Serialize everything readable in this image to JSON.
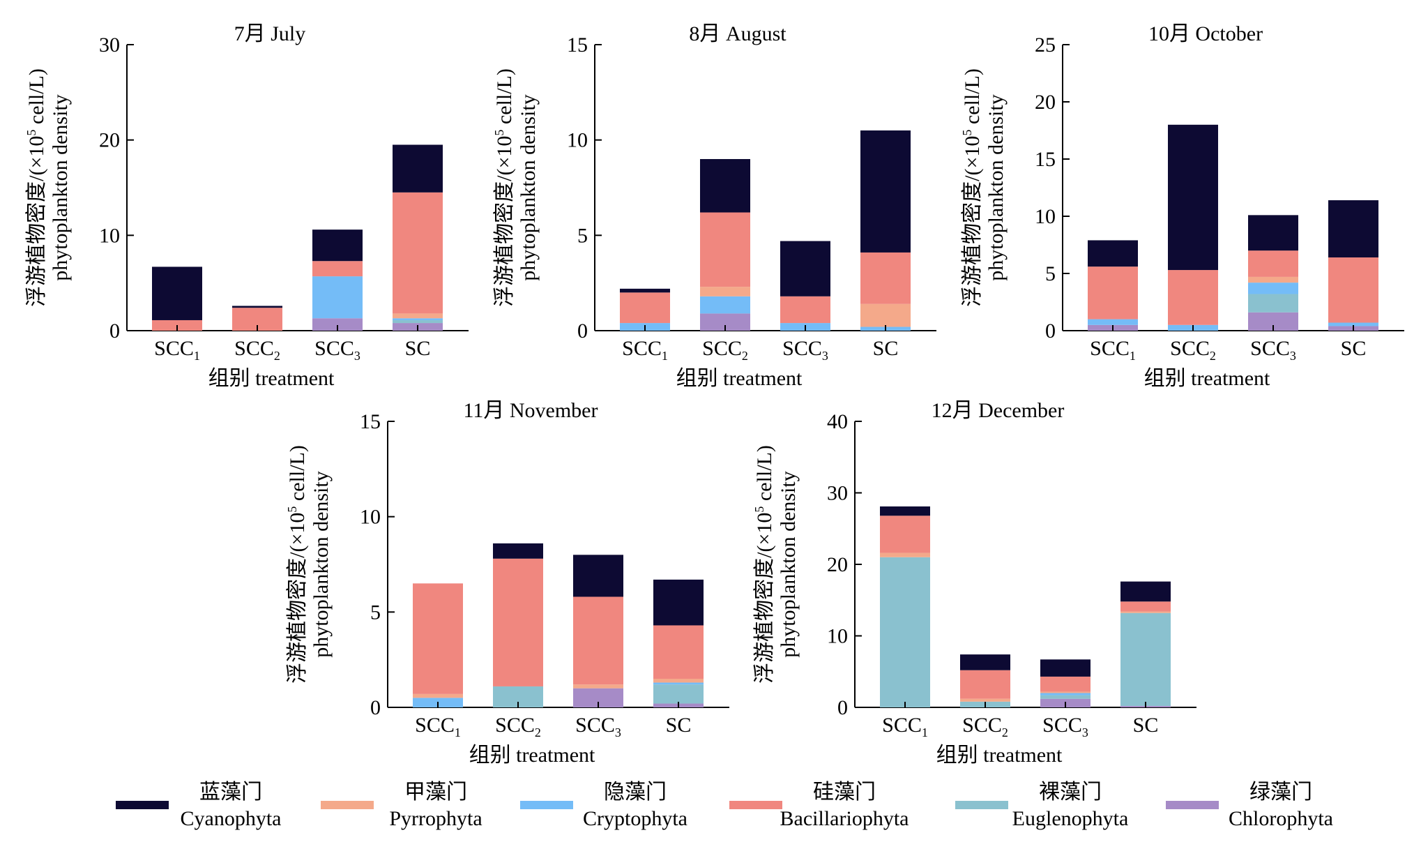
{
  "ylabel_cn": "浮游植物密度/(×10",
  "ylabel_sup": "5",
  "ylabel_unit": " cell/L)",
  "ylabel_en": "phytoplankton density",
  "xlabel": "组别 treatment",
  "legend": [
    {
      "key": "cyano",
      "cn": "蓝藻门",
      "en": "Cyanophyta",
      "color": "#0d0a33"
    },
    {
      "key": "pyrro",
      "cn": "甲藻门",
      "en": "Pyrrophyta",
      "color": "#f4a98a"
    },
    {
      "key": "crypto",
      "cn": "隐藻门",
      "en": "Cryptophyta",
      "color": "#74bcf7"
    },
    {
      "key": "bac",
      "cn": "硅藻门",
      "en": "Bacillariophyta",
      "color": "#f0877f"
    },
    {
      "key": "eug",
      "cn": "裸藻门",
      "en": "Euglenophyta",
      "color": "#8ac1cf"
    },
    {
      "key": "chloro",
      "cn": "绿藻门",
      "en": "Chlorophyta",
      "color": "#a68bc7"
    }
  ],
  "chart_data": [
    {
      "type": "bar",
      "stacked": true,
      "title": "7月 July",
      "categories": [
        {
          "base": "SCC",
          "sub": "1"
        },
        {
          "base": "SCC",
          "sub": "2"
        },
        {
          "base": "SCC",
          "sub": "3"
        },
        {
          "base": "SC",
          "sub": ""
        }
      ],
      "ylim": [
        0,
        30
      ],
      "yticks": [
        0,
        10,
        20,
        30
      ],
      "series": [
        {
          "name": "绿藻门 Chlorophyta",
          "key": "chloro",
          "values": [
            0,
            0,
            1.3,
            0.8
          ]
        },
        {
          "name": "裸藻门 Euglenophyta",
          "key": "eug",
          "values": [
            0,
            0,
            0,
            0.3
          ]
        },
        {
          "name": "隐藻门 Cryptophyta",
          "key": "crypto",
          "values": [
            0,
            0,
            4.4,
            0.2
          ]
        },
        {
          "name": "甲藻门 Pyrrophyta",
          "key": "pyrro",
          "values": [
            0,
            0,
            0,
            0.5
          ]
        },
        {
          "name": "硅藻门 Bacillariophyta",
          "key": "bac",
          "values": [
            1.1,
            2.4,
            1.6,
            12.7
          ]
        },
        {
          "name": "蓝藻门 Cyanophyta",
          "key": "cyano",
          "values": [
            5.6,
            0.2,
            3.3,
            5.0
          ]
        }
      ]
    },
    {
      "type": "bar",
      "stacked": true,
      "title": "8月 August",
      "categories": [
        {
          "base": "SCC",
          "sub": "1"
        },
        {
          "base": "SCC",
          "sub": "2"
        },
        {
          "base": "SCC",
          "sub": "3"
        },
        {
          "base": "SC",
          "sub": ""
        }
      ],
      "ylim": [
        0,
        15
      ],
      "yticks": [
        0,
        5,
        10,
        15
      ],
      "series": [
        {
          "name": "绿藻门 Chlorophyta",
          "key": "chloro",
          "values": [
            0,
            0.9,
            0,
            0
          ]
        },
        {
          "name": "裸藻门 Euglenophyta",
          "key": "eug",
          "values": [
            0,
            0,
            0,
            0
          ]
        },
        {
          "name": "隐藻门 Cryptophyta",
          "key": "crypto",
          "values": [
            0.4,
            0.9,
            0.4,
            0.2
          ]
        },
        {
          "name": "甲藻门 Pyrrophyta",
          "key": "pyrro",
          "values": [
            0,
            0.5,
            0,
            1.2
          ]
        },
        {
          "name": "硅藻门 Bacillariophyta",
          "key": "bac",
          "values": [
            1.6,
            3.9,
            1.4,
            2.7
          ]
        },
        {
          "name": "蓝藻门 Cyanophyta",
          "key": "cyano",
          "values": [
            0.2,
            2.8,
            2.9,
            6.4
          ]
        }
      ]
    },
    {
      "type": "bar",
      "stacked": true,
      "title": "10月 October",
      "categories": [
        {
          "base": "SCC",
          "sub": "1"
        },
        {
          "base": "SCC",
          "sub": "2"
        },
        {
          "base": "SCC",
          "sub": "3"
        },
        {
          "base": "SC",
          "sub": ""
        }
      ],
      "ylim": [
        0,
        25
      ],
      "yticks": [
        0,
        5,
        10,
        15,
        20,
        25
      ],
      "series": [
        {
          "name": "绿藻门 Chlorophyta",
          "key": "chloro",
          "values": [
            0.5,
            0,
            1.6,
            0.4
          ]
        },
        {
          "name": "裸藻门 Euglenophyta",
          "key": "eug",
          "values": [
            0,
            0,
            1.6,
            0
          ]
        },
        {
          "name": "隐藻门 Cryptophyta",
          "key": "crypto",
          "values": [
            0.5,
            0.5,
            1.0,
            0.3
          ]
        },
        {
          "name": "甲藻门 Pyrrophyta",
          "key": "pyrro",
          "values": [
            0,
            0,
            0.5,
            0
          ]
        },
        {
          "name": "硅藻门 Bacillariophyta",
          "key": "bac",
          "values": [
            4.6,
            4.8,
            2.3,
            5.7
          ]
        },
        {
          "name": "蓝藻门 Cyanophyta",
          "key": "cyano",
          "values": [
            2.3,
            12.7,
            3.1,
            5.0
          ]
        }
      ]
    },
    {
      "type": "bar",
      "stacked": true,
      "title": "11月 November",
      "categories": [
        {
          "base": "SCC",
          "sub": "1"
        },
        {
          "base": "SCC",
          "sub": "2"
        },
        {
          "base": "SCC",
          "sub": "3"
        },
        {
          "base": "SC",
          "sub": ""
        }
      ],
      "ylim": [
        0,
        15
      ],
      "yticks": [
        0,
        5,
        10,
        15
      ],
      "series": [
        {
          "name": "绿藻门 Chlorophyta",
          "key": "chloro",
          "values": [
            0,
            0,
            1.0,
            0.2
          ]
        },
        {
          "name": "裸藻门 Euglenophyta",
          "key": "eug",
          "values": [
            0,
            1.1,
            0,
            1.0
          ]
        },
        {
          "name": "隐藻门 Cryptophyta",
          "key": "crypto",
          "values": [
            0.5,
            0,
            0,
            0.1
          ]
        },
        {
          "name": "甲藻门 Pyrrophyta",
          "key": "pyrro",
          "values": [
            0.2,
            0,
            0.2,
            0.2
          ]
        },
        {
          "name": "硅藻门 Bacillariophyta",
          "key": "bac",
          "values": [
            5.8,
            6.7,
            4.6,
            2.8
          ]
        },
        {
          "name": "蓝藻门 Cyanophyta",
          "key": "cyano",
          "values": [
            0,
            0.8,
            2.2,
            2.4
          ]
        }
      ]
    },
    {
      "type": "bar",
      "stacked": true,
      "title": "12月 December",
      "categories": [
        {
          "base": "SCC",
          "sub": "1"
        },
        {
          "base": "SCC",
          "sub": "2"
        },
        {
          "base": "SCC",
          "sub": "3"
        },
        {
          "base": "SC",
          "sub": ""
        }
      ],
      "ylim": [
        0,
        40
      ],
      "yticks": [
        0,
        10,
        20,
        30,
        40
      ],
      "series": [
        {
          "name": "绿藻门 Chlorophyta",
          "key": "chloro",
          "values": [
            0,
            0,
            1.2,
            0.2
          ]
        },
        {
          "name": "裸藻门 Euglenophyta",
          "key": "eug",
          "values": [
            21.0,
            0.8,
            0.5,
            13.0
          ]
        },
        {
          "name": "隐藻门 Cryptophyta",
          "key": "crypto",
          "values": [
            0,
            0,
            0.3,
            0
          ]
        },
        {
          "name": "甲藻门 Pyrrophyta",
          "key": "pyrro",
          "values": [
            0.6,
            0.4,
            0.2,
            0.2
          ]
        },
        {
          "name": "硅藻门 Bacillariophyta",
          "key": "bac",
          "values": [
            5.2,
            4.0,
            2.1,
            1.4
          ]
        },
        {
          "name": "蓝藻门 Cyanophyta",
          "key": "cyano",
          "values": [
            1.3,
            2.2,
            2.4,
            2.8
          ]
        }
      ]
    }
  ]
}
